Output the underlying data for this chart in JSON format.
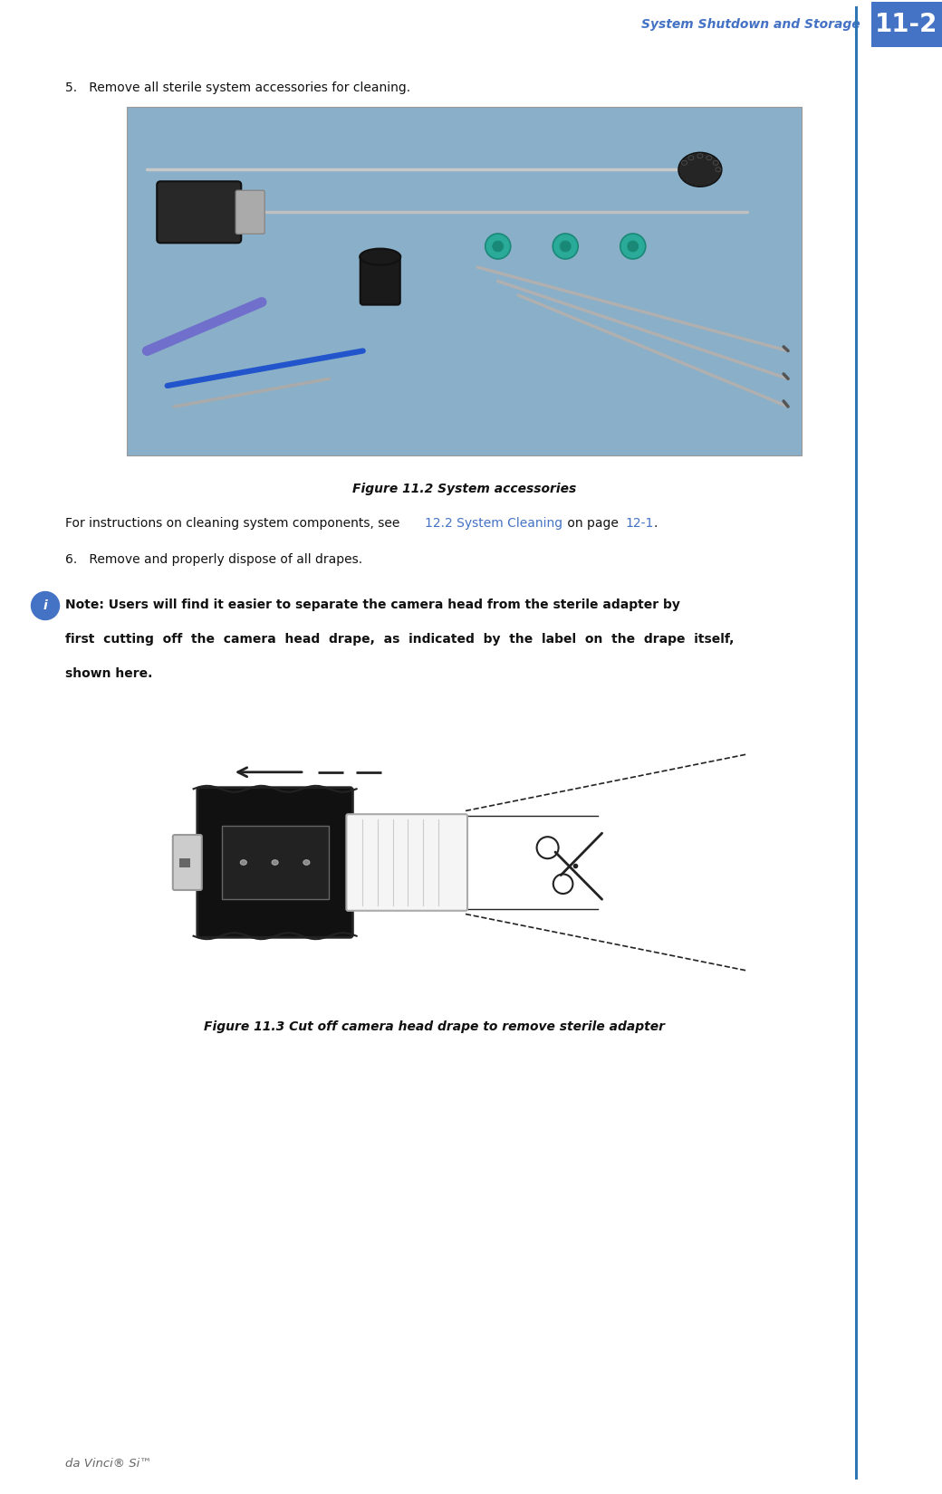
{
  "page_width": 10.4,
  "page_height": 16.5,
  "dpi": 100,
  "bg_color": "#ffffff",
  "header_blue": "#4472C4",
  "header_text": "System Shutdown and Storage",
  "header_num": "11-2",
  "body_text_color": "#111111",
  "gray_text_color": "#666666",
  "link_color": "#4472C4",
  "step5_text": "5.  Remove all sterile system accessories for cleaning.",
  "fig1_caption": "Figure 11.2 System accessories",
  "fig1_sub_text": "For instructions on cleaning system components, see ",
  "fig1_link_text": "12.2 System Cleaning",
  "fig1_link_after": " on page ",
  "fig1_page_link": "12-1",
  "fig1_period": ".",
  "step6_text": "6.  Remove and properly dispose of all drapes.",
  "note_icon_color": "#4472C4",
  "note_line1": "Note: Users will find it easier to separate the camera head from the sterile adapter by",
  "note_line2": "first  cutting  off  the  camera  head  drape,  as  indicated  by  the  label  on  the  drape  itself,",
  "note_line3": "shown here.",
  "fig2_caption": "Figure 11.3 Cut off camera head drape to remove sterile adapter",
  "footer_text": "da Vinci® Si™",
  "footer_line_color": "#2E75B6",
  "image1_bg": "#8aafc8",
  "image2_line": "#333333"
}
